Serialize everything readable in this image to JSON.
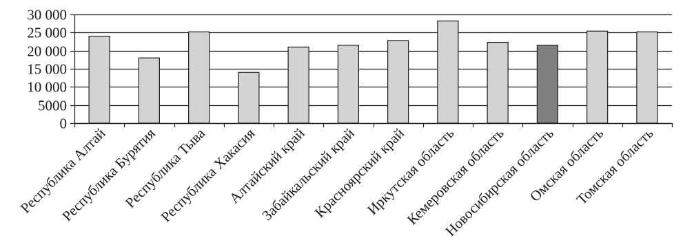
{
  "chart_data": {
    "type": "bar",
    "categories": [
      "Республика Алтай",
      "Республика Бурятия",
      "Республика Тыва",
      "Республика Хакасия",
      "Алтайский край",
      "Забайкальский край",
      "Красноярский край",
      "Иркутская область",
      "Кемеровская область",
      "Новосибирская область",
      "Омская область",
      "Томская область"
    ],
    "values": [
      24000,
      18000,
      25200,
      14000,
      21000,
      21500,
      22800,
      28200,
      22300,
      21500,
      25400,
      25200
    ],
    "highlight_index": 9,
    "ylim": [
      0,
      30000
    ],
    "yticks": [
      0,
      5000,
      10000,
      15000,
      20000,
      25000,
      30000
    ],
    "ytick_labels": [
      "0",
      "5000",
      "10 000",
      "15 000",
      "20 000",
      "25 000",
      "30 000"
    ],
    "grid": true,
    "colors": {
      "bar": "#d3d3d3",
      "highlight": "#808080",
      "outline": "#1a1a1a",
      "grid": "#1a1a1a"
    }
  }
}
